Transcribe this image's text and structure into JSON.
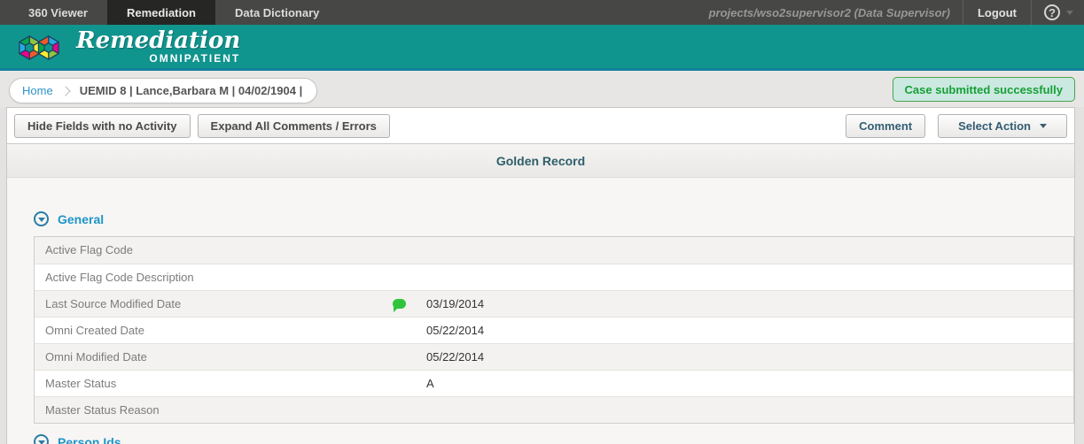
{
  "top_nav": {
    "tabs": [
      {
        "label": "360 Viewer",
        "active": false
      },
      {
        "label": "Remediation",
        "active": true
      },
      {
        "label": "Data Dictionary",
        "active": false
      }
    ],
    "user_info": "projects/wso2supervisor2 (Data Supervisor)",
    "logout_label": "Logout",
    "help_glyph": "?"
  },
  "brand": {
    "title": "Remediation",
    "subtitle": "OMNIPATIENT"
  },
  "breadcrumb": {
    "home_label": "Home",
    "current": "UEMID 8 | Lance,Barbara M | 04/02/1904 |"
  },
  "alert": {
    "message": "Case submitted successfully",
    "text_color": "#179f36",
    "background": "#cbe9e1",
    "border_color": "#4aa34a"
  },
  "toolbar": {
    "hide_fields_label": "Hide Fields with no Activity",
    "expand_all_label": "Expand All Comments / Errors",
    "comment_label": "Comment",
    "select_action_label": "Select Action"
  },
  "content": {
    "title": "Golden Record",
    "sections": [
      {
        "label": "General",
        "expanded": true
      },
      {
        "label": "Person Ids",
        "expanded": false
      }
    ],
    "fields": [
      {
        "label": "Active Flag Code",
        "value": "",
        "has_comment": false
      },
      {
        "label": "Active Flag Code Description",
        "value": "",
        "has_comment": false
      },
      {
        "label": "Last Source Modified Date",
        "value": "03/19/2014",
        "has_comment": true
      },
      {
        "label": "Omni Created Date",
        "value": "05/22/2014",
        "has_comment": false
      },
      {
        "label": "Omni Modified Date",
        "value": "05/22/2014",
        "has_comment": false
      },
      {
        "label": "Master Status",
        "value": "A",
        "has_comment": false
      },
      {
        "label": "Master Status Reason",
        "value": "",
        "has_comment": false
      }
    ]
  },
  "colors": {
    "brand_teal": "#10948e",
    "nav_bar": "#474745",
    "accent_blue": "#1e95c9",
    "comment_green": "#2fc43c",
    "record_title": "#2e5f6b"
  },
  "icons": {
    "help": "question-mark-circle",
    "comment": "speech-bubble",
    "section_toggle": "chevron-down-circle",
    "select_action": "caret-down"
  }
}
